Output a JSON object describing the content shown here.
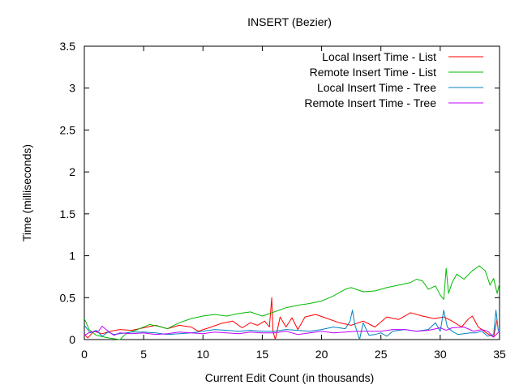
{
  "chart_data": {
    "type": "line",
    "title": "INSERT (Bezier)",
    "xlabel": "Current Edit Count (in thousands)",
    "ylabel": "Time (milliseconds)",
    "xlim": [
      0,
      35
    ],
    "ylim": [
      0,
      3.5
    ],
    "xticks": [
      0,
      5,
      10,
      15,
      20,
      25,
      30,
      35
    ],
    "yticks": [
      0,
      0.5,
      1,
      1.5,
      2,
      2.5,
      3,
      3.5
    ],
    "xtick_labels": [
      "0",
      "5",
      "10",
      "15",
      "20",
      "25",
      "30",
      "35"
    ],
    "ytick_labels": [
      "0",
      "0.5",
      "1",
      "1.5",
      "2",
      "2.5",
      "3",
      "3.5"
    ],
    "grid": false,
    "legend_position": "top-right",
    "series": [
      {
        "name": "Local Insert Time - List",
        "color": "#ff0000",
        "points": [
          [
            0,
            0.06
          ],
          [
            0.3,
            0.02
          ],
          [
            0.8,
            0.1
          ],
          [
            1.5,
            0.07
          ],
          [
            2.2,
            0.1
          ],
          [
            3,
            0.12
          ],
          [
            4,
            0.11
          ],
          [
            5,
            0.14
          ],
          [
            6,
            0.17
          ],
          [
            7,
            0.13
          ],
          [
            8,
            0.17
          ],
          [
            9,
            0.15
          ],
          [
            9.6,
            0.1
          ],
          [
            10.5,
            0.14
          ],
          [
            11.5,
            0.19
          ],
          [
            12.5,
            0.22
          ],
          [
            13.3,
            0.14
          ],
          [
            14,
            0.2
          ],
          [
            14.6,
            0.17
          ],
          [
            15.2,
            0.22
          ],
          [
            15.6,
            0.15
          ],
          [
            15.8,
            0.5
          ],
          [
            15.9,
            0.1
          ],
          [
            16.1,
            0.0
          ],
          [
            16.5,
            0.27
          ],
          [
            17,
            0.15
          ],
          [
            17.5,
            0.26
          ],
          [
            18,
            0.12
          ],
          [
            18.6,
            0.27
          ],
          [
            19.5,
            0.3
          ],
          [
            20.5,
            0.25
          ],
          [
            21.5,
            0.2
          ],
          [
            22.5,
            0.17
          ],
          [
            23.5,
            0.22
          ],
          [
            24.5,
            0.15
          ],
          [
            25.5,
            0.27
          ],
          [
            26.5,
            0.24
          ],
          [
            27.5,
            0.32
          ],
          [
            28.5,
            0.28
          ],
          [
            29.5,
            0.25
          ],
          [
            30.3,
            0.27
          ],
          [
            31,
            0.22
          ],
          [
            31.8,
            0.15
          ],
          [
            32.4,
            0.25
          ],
          [
            32.7,
            0.28
          ],
          [
            33.2,
            0.15
          ],
          [
            34,
            0.07
          ],
          [
            34.5,
            0.03
          ],
          [
            34.8,
            0.25
          ]
        ]
      },
      {
        "name": "Remote Insert Time - List",
        "color": "#00bb00",
        "points": [
          [
            0,
            0.25
          ],
          [
            0.4,
            0.12
          ],
          [
            1,
            0.05
          ],
          [
            2,
            0.02
          ],
          [
            3,
            0.0
          ],
          [
            3.5,
            0.07
          ],
          [
            4.5,
            0.12
          ],
          [
            5.5,
            0.18
          ],
          [
            6.5,
            0.15
          ],
          [
            7,
            0.13
          ],
          [
            8,
            0.2
          ],
          [
            9,
            0.25
          ],
          [
            10,
            0.28
          ],
          [
            11,
            0.3
          ],
          [
            12,
            0.28
          ],
          [
            13,
            0.31
          ],
          [
            14,
            0.33
          ],
          [
            15,
            0.28
          ],
          [
            16,
            0.33
          ],
          [
            17,
            0.38
          ],
          [
            18,
            0.41
          ],
          [
            19,
            0.43
          ],
          [
            20,
            0.46
          ],
          [
            21,
            0.52
          ],
          [
            22,
            0.6
          ],
          [
            22.5,
            0.62
          ],
          [
            23.5,
            0.57
          ],
          [
            24.5,
            0.58
          ],
          [
            25.5,
            0.62
          ],
          [
            26.5,
            0.65
          ],
          [
            27.5,
            0.68
          ],
          [
            28,
            0.72
          ],
          [
            28.5,
            0.7
          ],
          [
            29,
            0.6
          ],
          [
            29.6,
            0.64
          ],
          [
            30,
            0.53
          ],
          [
            30.3,
            0.48
          ],
          [
            30.5,
            0.85
          ],
          [
            30.7,
            0.55
          ],
          [
            31,
            0.68
          ],
          [
            31.4,
            0.78
          ],
          [
            32,
            0.72
          ],
          [
            32.7,
            0.82
          ],
          [
            33.3,
            0.88
          ],
          [
            33.8,
            0.82
          ],
          [
            34.2,
            0.65
          ],
          [
            34.5,
            0.73
          ],
          [
            34.8,
            0.55
          ],
          [
            35,
            0.67
          ]
        ]
      },
      {
        "name": "Local Insert Time - Tree",
        "color": "#0080c0",
        "points": [
          [
            0,
            0.17
          ],
          [
            0.5,
            0.08
          ],
          [
            1,
            0.11
          ],
          [
            1.5,
            0.04
          ],
          [
            2,
            0.09
          ],
          [
            2.5,
            0.06
          ],
          [
            3,
            0.07
          ],
          [
            4,
            0.09
          ],
          [
            5,
            0.09
          ],
          [
            6,
            0.08
          ],
          [
            7,
            0.06
          ],
          [
            8,
            0.07
          ],
          [
            9,
            0.08
          ],
          [
            10,
            0.1
          ],
          [
            11,
            0.12
          ],
          [
            12,
            0.11
          ],
          [
            13,
            0.1
          ],
          [
            14,
            0.11
          ],
          [
            15,
            0.1
          ],
          [
            16,
            0.1
          ],
          [
            17,
            0.12
          ],
          [
            18,
            0.11
          ],
          [
            19,
            0.1
          ],
          [
            20,
            0.12
          ],
          [
            21,
            0.15
          ],
          [
            22,
            0.13
          ],
          [
            22.4,
            0.22
          ],
          [
            22.6,
            0.35
          ],
          [
            22.8,
            0.18
          ],
          [
            23.2,
            0.0
          ],
          [
            23.5,
            0.2
          ],
          [
            24,
            0.05
          ],
          [
            24.5,
            0.06
          ],
          [
            25,
            0.08
          ],
          [
            25.5,
            0.04
          ],
          [
            26,
            0.1
          ],
          [
            27,
            0.12
          ],
          [
            28,
            0.1
          ],
          [
            29,
            0.12
          ],
          [
            29.6,
            0.2
          ],
          [
            30,
            0.1
          ],
          [
            30.3,
            0.35
          ],
          [
            30.6,
            0.15
          ],
          [
            31,
            0.1
          ],
          [
            31.5,
            0.06
          ],
          [
            32,
            0.07
          ],
          [
            32.5,
            0.08
          ],
          [
            33,
            0.08
          ],
          [
            33.5,
            0.1
          ],
          [
            34,
            0.04
          ],
          [
            34.5,
            0.06
          ],
          [
            34.7,
            0.35
          ],
          [
            34.9,
            0.1
          ]
        ]
      },
      {
        "name": "Remote Insert Time - Tree",
        "color": "#c000ff",
        "points": [
          [
            0,
            0.05
          ],
          [
            0.5,
            0.09
          ],
          [
            1.2,
            0.1
          ],
          [
            1.5,
            0.16
          ],
          [
            2,
            0.1
          ],
          [
            2.5,
            0.05
          ],
          [
            3,
            0.08
          ],
          [
            4,
            0.07
          ],
          [
            5,
            0.08
          ],
          [
            6,
            0.06
          ],
          [
            7,
            0.07
          ],
          [
            8,
            0.09
          ],
          [
            9,
            0.08
          ],
          [
            10,
            0.07
          ],
          [
            11,
            0.09
          ],
          [
            12,
            0.08
          ],
          [
            13,
            0.07
          ],
          [
            14,
            0.09
          ],
          [
            15,
            0.08
          ],
          [
            16,
            0.08
          ],
          [
            17,
            0.1
          ],
          [
            18,
            0.06
          ],
          [
            19,
            0.08
          ],
          [
            20,
            0.1
          ],
          [
            21,
            0.08
          ],
          [
            22,
            0.09
          ],
          [
            23,
            0.1
          ],
          [
            24,
            0.1
          ],
          [
            25,
            0.1
          ],
          [
            26,
            0.12
          ],
          [
            27,
            0.12
          ],
          [
            28,
            0.1
          ],
          [
            29,
            0.11
          ],
          [
            30,
            0.14
          ],
          [
            30.5,
            0.11
          ],
          [
            31,
            0.14
          ],
          [
            32,
            0.15
          ],
          [
            32.8,
            0.1
          ],
          [
            33.5,
            0.12
          ],
          [
            34,
            0.1
          ],
          [
            34.5,
            0.03
          ],
          [
            35,
            0.1
          ]
        ]
      }
    ]
  }
}
